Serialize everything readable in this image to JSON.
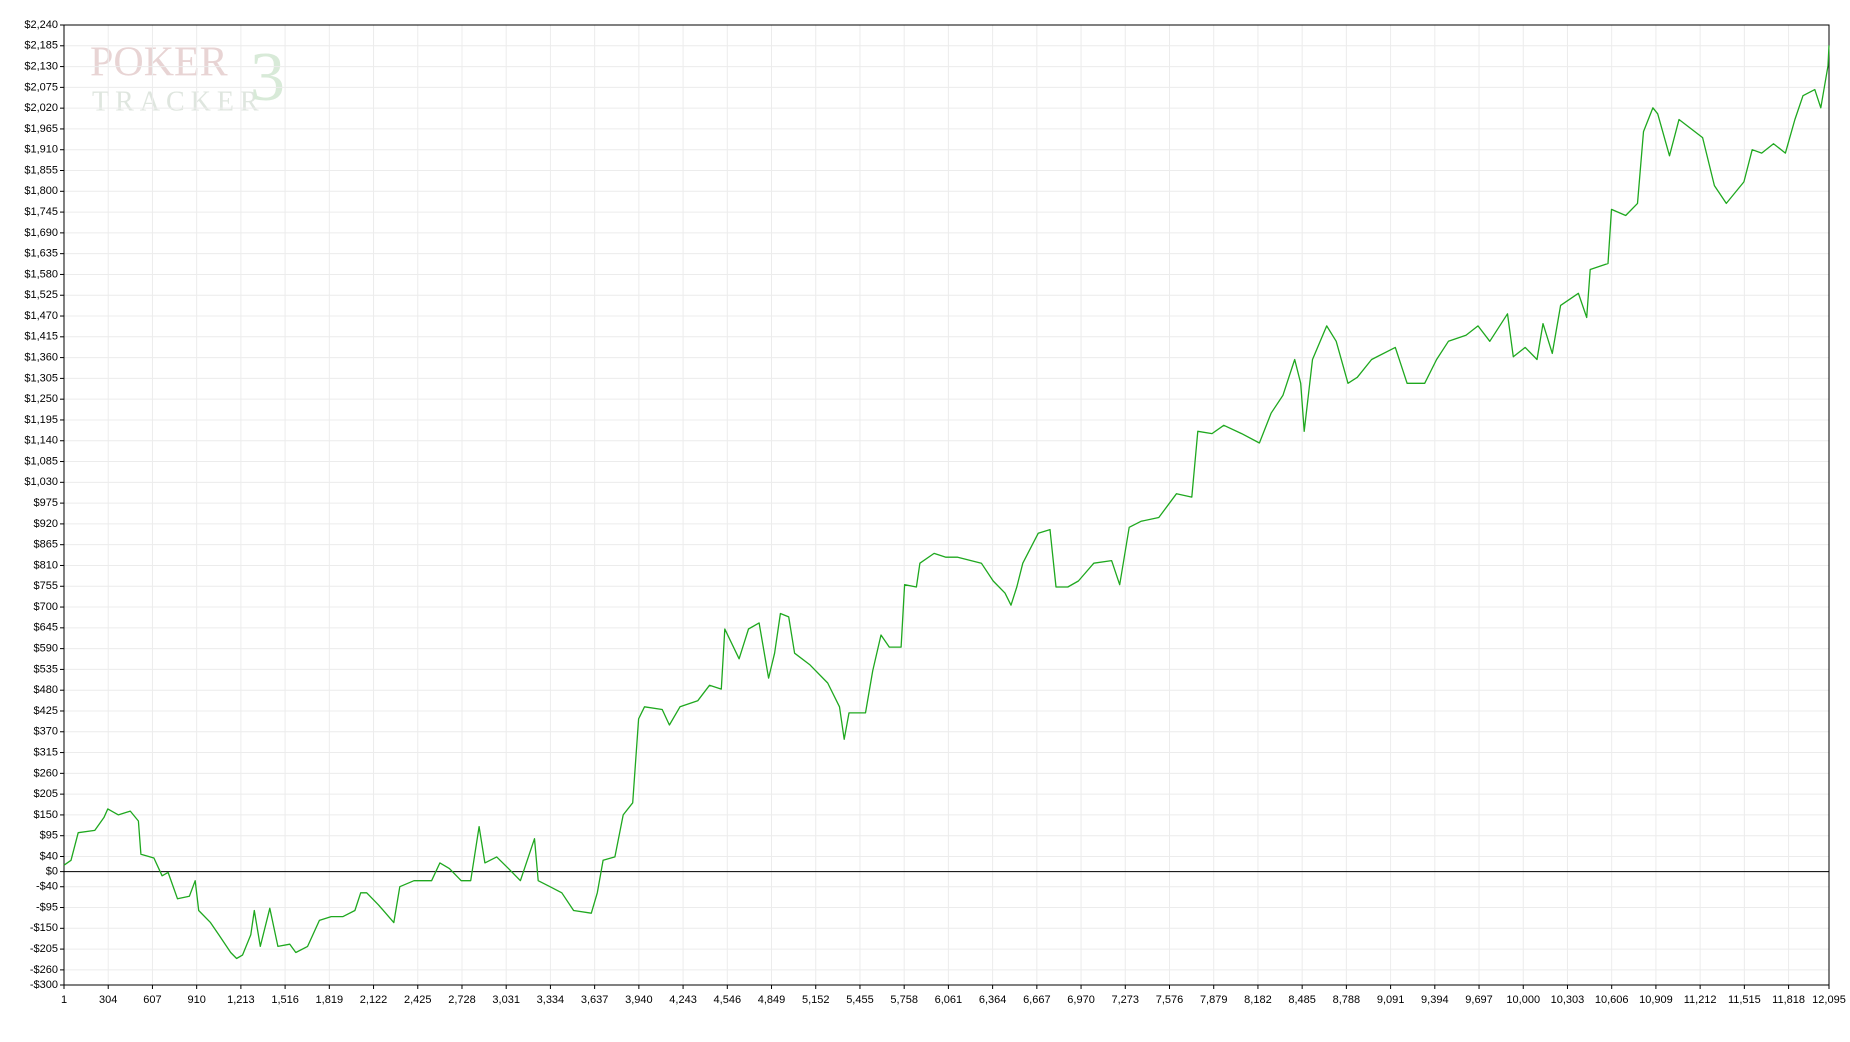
{
  "chart_data": {
    "type": "line",
    "color": "#1fa81f",
    "grid": true,
    "zero_line": true,
    "watermark": [
      "POKER",
      "TRACKER",
      "3"
    ],
    "xlim": [
      1,
      12095
    ],
    "ylim": [
      -300,
      2240
    ],
    "xticks": [
      1,
      304,
      607,
      910,
      {
        "value": 1213,
        "label": "1,213"
      },
      {
        "value": 1516,
        "label": "1,516"
      },
      {
        "value": 1819,
        "label": "1,819"
      },
      {
        "value": 2122,
        "label": "2,122"
      },
      {
        "value": 2425,
        "label": "2,425"
      },
      {
        "value": 2728,
        "label": "2,728"
      },
      {
        "value": 3031,
        "label": "3,031"
      },
      {
        "value": 3334,
        "label": "3,334"
      },
      {
        "value": 3637,
        "label": "3,637"
      },
      {
        "value": 3940,
        "label": "3,940"
      },
      {
        "value": 4243,
        "label": "4,243"
      },
      {
        "value": 4546,
        "label": "4,546"
      },
      {
        "value": 4849,
        "label": "4,849"
      },
      {
        "value": 5152,
        "label": "5,152"
      },
      {
        "value": 5455,
        "label": "5,455"
      },
      {
        "value": 5758,
        "label": "5,758"
      },
      {
        "value": 6061,
        "label": "6,061"
      },
      {
        "value": 6364,
        "label": "6,364"
      },
      {
        "value": 6667,
        "label": "6,667"
      },
      {
        "value": 6970,
        "label": "6,970"
      },
      {
        "value": 7273,
        "label": "7,273"
      },
      {
        "value": 7576,
        "label": "7,576"
      },
      {
        "value": 7879,
        "label": "7,879"
      },
      {
        "value": 8182,
        "label": "8,182"
      },
      {
        "value": 8485,
        "label": "8,485"
      },
      {
        "value": 8788,
        "label": "8,788"
      },
      {
        "value": 9091,
        "label": "9,091"
      },
      {
        "value": 9394,
        "label": "9,394"
      },
      {
        "value": 9697,
        "label": "9,697"
      },
      {
        "value": 10000,
        "label": "10,000"
      },
      {
        "value": 10303,
        "label": "10,303"
      },
      {
        "value": 10606,
        "label": "10,606"
      },
      {
        "value": 10909,
        "label": "10,909"
      },
      {
        "value": 11212,
        "label": "11,212"
      },
      {
        "value": 11515,
        "label": "11,515"
      },
      {
        "value": 11818,
        "label": "11,818"
      },
      {
        "value": 12095,
        "label": "12,095"
      }
    ],
    "yticks": [
      {
        "value": 2240,
        "label": "$2,240"
      },
      {
        "value": 2185,
        "label": "$2,185"
      },
      {
        "value": 2130,
        "label": "$2,130"
      },
      {
        "value": 2075,
        "label": "$2,075"
      },
      {
        "value": 2020,
        "label": "$2,020"
      },
      {
        "value": 1965,
        "label": "$1,965"
      },
      {
        "value": 1910,
        "label": "$1,910"
      },
      {
        "value": 1855,
        "label": "$1,855"
      },
      {
        "value": 1800,
        "label": "$1,800"
      },
      {
        "value": 1745,
        "label": "$1,745"
      },
      {
        "value": 1690,
        "label": "$1,690"
      },
      {
        "value": 1635,
        "label": "$1,635"
      },
      {
        "value": 1580,
        "label": "$1,580"
      },
      {
        "value": 1525,
        "label": "$1,525"
      },
      {
        "value": 1470,
        "label": "$1,470"
      },
      {
        "value": 1415,
        "label": "$1,415"
      },
      {
        "value": 1360,
        "label": "$1,360"
      },
      {
        "value": 1305,
        "label": "$1,305"
      },
      {
        "value": 1250,
        "label": "$1,250"
      },
      {
        "value": 1195,
        "label": "$1,195"
      },
      {
        "value": 1140,
        "label": "$1,140"
      },
      {
        "value": 1085,
        "label": "$1,085"
      },
      {
        "value": 1030,
        "label": "$1,030"
      },
      {
        "value": 975,
        "label": "$975"
      },
      {
        "value": 920,
        "label": "$920"
      },
      {
        "value": 865,
        "label": "$865"
      },
      {
        "value": 810,
        "label": "$810"
      },
      {
        "value": 755,
        "label": "$755"
      },
      {
        "value": 700,
        "label": "$700"
      },
      {
        "value": 645,
        "label": "$645"
      },
      {
        "value": 590,
        "label": "$590"
      },
      {
        "value": 535,
        "label": "$535"
      },
      {
        "value": 480,
        "label": "$480"
      },
      {
        "value": 425,
        "label": "$425"
      },
      {
        "value": 370,
        "label": "$370"
      },
      {
        "value": 315,
        "label": "$315"
      },
      {
        "value": 260,
        "label": "$260"
      },
      {
        "value": 205,
        "label": "$205"
      },
      {
        "value": 150,
        "label": "$150"
      },
      {
        "value": 95,
        "label": "$95"
      },
      {
        "value": 40,
        "label": "$40"
      },
      {
        "value": 0,
        "label": "$0"
      },
      {
        "value": -40,
        "label": "-$40"
      },
      {
        "value": -95,
        "label": "-$95"
      },
      {
        "value": -150,
        "label": "-$150"
      },
      {
        "value": -205,
        "label": "-$205"
      },
      {
        "value": -260,
        "label": "-$260"
      },
      {
        "value": -300,
        "label": "-$300"
      }
    ],
    "x": [
      1,
      49,
      98,
      212,
      276,
      301,
      374,
      455,
      511,
      528,
      617,
      673,
      714,
      779,
      860,
      900,
      924,
      1005,
      1062,
      1143,
      1184,
      1224,
      1281,
      1305,
      1346,
      1411,
      1467,
      1548,
      1589,
      1670,
      1751,
      1832,
      1913,
      1994,
      2034,
      2075,
      2156,
      2261,
      2302,
      2399,
      2520,
      2577,
      2642,
      2723,
      2788,
      2845,
      2885,
      2966,
      3047,
      3128,
      3225,
      3250,
      3331,
      3412,
      3493,
      3614,
      3655,
      3695,
      3776,
      3833,
      3898,
      3938,
      3979,
      4100,
      4149,
      4222,
      4343,
      4424,
      4505,
      4529,
      4627,
      4691,
      4764,
      4829,
      4870,
      4910,
      4967,
      5007,
      5113,
      5234,
      5315,
      5347,
      5380,
      5493,
      5542,
      5599,
      5656,
      5737,
      5761,
      5842,
      5866,
      5963,
      6044,
      6125,
      6287,
      6368,
      6449,
      6490,
      6530,
      6571,
      6676,
      6757,
      6798,
      6879,
      6952,
      7057,
      7179,
      7235,
      7300,
      7381,
      7503,
      7624,
      7729,
      7770,
      7867,
      7948,
      8070,
      8192,
      8272,
      8353,
      8434,
      8475,
      8499,
      8556,
      8653,
      8718,
      8799,
      8863,
      8961,
      9123,
      9204,
      9325,
      9406,
      9487,
      9608,
      9690,
      9771,
      9892,
      9932,
      10013,
      10094,
      10135,
      10199,
      10256,
      10378,
      10435,
      10459,
      10581,
      10605,
      10702,
      10783,
      10824,
      10888,
      10921,
      11002,
      11067,
      11229,
      11310,
      11391,
      11512,
      11569,
      11634,
      11715,
      11796,
      11861,
      11917,
      11998,
      12039,
      12088,
      12095
    ],
    "values": [
      17,
      30,
      103,
      109,
      144,
      166,
      150,
      160,
      134,
      46,
      36,
      -11,
      -2,
      -72,
      -65,
      -24,
      -103,
      -135,
      -167,
      -214,
      -230,
      -221,
      -167,
      -103,
      -198,
      -97,
      -198,
      -192,
      -214,
      -198,
      -129,
      -119,
      -119,
      -103,
      -56,
      -56,
      -88,
      -135,
      -40,
      -24,
      -24,
      23,
      8,
      -24,
      -24,
      119,
      23,
      39,
      8,
      -24,
      87,
      -24,
      -40,
      -56,
      -103,
      -110,
      -56,
      30,
      39,
      150,
      182,
      404,
      436,
      429,
      388,
      436,
      452,
      493,
      483,
      642,
      563,
      642,
      658,
      512,
      578,
      683,
      674,
      578,
      547,
      499,
      436,
      350,
      420,
      420,
      531,
      626,
      594,
      594,
      759,
      753,
      816,
      842,
      832,
      832,
      816,
      769,
      737,
      705,
      753,
      816,
      895,
      905,
      753,
      753,
      769,
      816,
      823,
      759,
      911,
      927,
      937,
      1000,
      991,
      1165,
      1159,
      1181,
      1159,
      1134,
      1213,
      1260,
      1355,
      1292,
      1165,
      1355,
      1444,
      1403,
      1292,
      1308,
      1355,
      1387,
      1292,
      1292,
      1355,
      1403,
      1419,
      1444,
      1403,
      1476,
      1362,
      1387,
      1355,
      1450,
      1371,
      1498,
      1530,
      1466,
      1593,
      1609,
      1752,
      1736,
      1768,
      1958,
      2021,
      2005,
      1894,
      1990,
      1942,
      1815,
      1768,
      1825,
      1910,
      1901,
      1926,
      1901,
      1990,
      2053,
      2069,
      2021,
      2132,
      2186
    ]
  }
}
